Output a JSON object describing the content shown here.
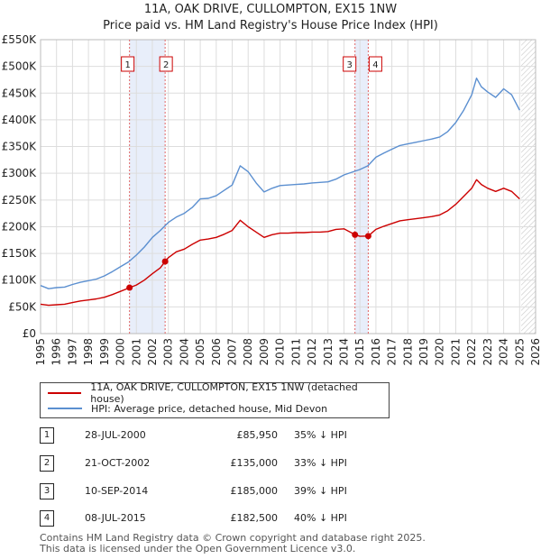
{
  "header": {
    "title": "11A, OAK DRIVE, CULLOMPTON, EX15 1NW",
    "subtitle": "Price paid vs. HM Land Registry's House Price Index (HPI)"
  },
  "colors": {
    "property": "#cc0000",
    "hpi": "#5b8fd0",
    "shade": "#e8eefa",
    "marker_line": "#e06666"
  },
  "legend": {
    "property_label": "11A, OAK DRIVE, CULLOMPTON, EX15 1NW (detached house)",
    "hpi_label": "HPI: Average price, detached house, Mid Devon"
  },
  "transactions": [
    {
      "num": "1",
      "date": "28-JUL-2000",
      "price": "£85,950",
      "hpi": "35% ↓ HPI"
    },
    {
      "num": "2",
      "date": "21-OCT-2002",
      "price": "£135,000",
      "hpi": "33% ↓ HPI"
    },
    {
      "num": "3",
      "date": "10-SEP-2014",
      "price": "£185,000",
      "hpi": "39% ↓ HPI"
    },
    {
      "num": "4",
      "date": "08-JUL-2015",
      "price": "£182,500",
      "hpi": "40% ↓ HPI"
    }
  ],
  "footer": {
    "line1": "Contains HM Land Registry data © Crown copyright and database right 2025.",
    "line2": "This data is licensed under the Open Government Licence v3.0."
  },
  "chart_data": {
    "type": "line",
    "xlim": [
      1995,
      2026
    ],
    "ylim": [
      0,
      550000
    ],
    "y_ticks": [
      {
        "value": 0,
        "label": "£0"
      },
      {
        "value": 50000,
        "label": "£50K"
      },
      {
        "value": 100000,
        "label": "£100K"
      },
      {
        "value": 150000,
        "label": "£150K"
      },
      {
        "value": 200000,
        "label": "£200K"
      },
      {
        "value": 250000,
        "label": "£250K"
      },
      {
        "value": 300000,
        "label": "£300K"
      },
      {
        "value": 350000,
        "label": "£350K"
      },
      {
        "value": 400000,
        "label": "£400K"
      },
      {
        "value": 450000,
        "label": "£450K"
      },
      {
        "value": 500000,
        "label": "£500K"
      },
      {
        "value": 550000,
        "label": "£550K"
      }
    ],
    "x_ticks": [
      "1995",
      "1996",
      "1997",
      "1998",
      "1999",
      "2000",
      "2001",
      "2002",
      "2003",
      "2004",
      "2005",
      "2006",
      "2007",
      "2008",
      "2009",
      "2010",
      "2011",
      "2012",
      "2013",
      "2014",
      "2015",
      "2016",
      "2017",
      "2018",
      "2019",
      "2020",
      "2021",
      "2022",
      "2023",
      "2024",
      "2025",
      "2026"
    ],
    "shaded_ranges": [
      [
        2000.57,
        2002.8
      ],
      [
        2014.69,
        2015.52
      ]
    ],
    "forecast_start": 2025.1,
    "series": [
      {
        "name": "HPI: Average price, detached house, Mid Devon",
        "color": "#5b8fd0",
        "x": [
          1995,
          1995.5,
          1996,
          1996.5,
          1997,
          1997.5,
          1998,
          1998.5,
          1999,
          1999.5,
          2000,
          2000.5,
          2001,
          2001.5,
          2002,
          2002.5,
          2003,
          2003.5,
          2004,
          2004.5,
          2005,
          2005.5,
          2006,
          2006.5,
          2007,
          2007.5,
          2008,
          2008.5,
          2009,
          2009.5,
          2010,
          2010.5,
          2011,
          2011.5,
          2012,
          2012.5,
          2013,
          2013.5,
          2014,
          2014.5,
          2015,
          2015.5,
          2016,
          2016.5,
          2017,
          2017.5,
          2018,
          2018.5,
          2019,
          2019.5,
          2020,
          2020.5,
          2021,
          2021.5,
          2022,
          2022.3,
          2022.6,
          2023,
          2023.5,
          2024,
          2024.5,
          2025
        ],
        "values": [
          90000,
          84000,
          86000,
          87000,
          92000,
          96000,
          99000,
          102000,
          108000,
          116000,
          125000,
          134000,
          147000,
          162000,
          180000,
          193000,
          208000,
          218000,
          225000,
          236000,
          252000,
          253000,
          258000,
          268000,
          278000,
          314000,
          303000,
          282000,
          265000,
          272000,
          277000,
          278000,
          279000,
          280000,
          282000,
          283000,
          284000,
          289000,
          297000,
          302000,
          307000,
          314000,
          330000,
          338000,
          345000,
          352000,
          355000,
          358000,
          361000,
          364000,
          368000,
          378000,
          395000,
          418000,
          447000,
          478000,
          462000,
          452000,
          442000,
          458000,
          447000,
          418000
        ]
      },
      {
        "name": "11A, OAK DRIVE, CULLOMPTON, EX15 1NW (detached house)",
        "color": "#cc0000",
        "x": [
          1995,
          1995.5,
          1996,
          1996.5,
          1997,
          1997.5,
          1998,
          1998.5,
          1999,
          1999.5,
          2000,
          2000.57,
          2001,
          2001.5,
          2002,
          2002.5,
          2002.8,
          2003,
          2003.5,
          2004,
          2004.5,
          2005,
          2005.5,
          2006,
          2006.5,
          2007,
          2007.5,
          2008,
          2008.5,
          2009,
          2009.5,
          2010,
          2010.5,
          2011,
          2011.5,
          2012,
          2012.5,
          2013,
          2013.5,
          2014,
          2014.69,
          2015,
          2015.52,
          2016,
          2016.5,
          2017,
          2017.5,
          2018,
          2018.5,
          2019,
          2019.5,
          2020,
          2020.5,
          2021,
          2021.5,
          2022,
          2022.3,
          2022.6,
          2023,
          2023.5,
          2024,
          2024.5,
          2025
        ],
        "values": [
          55000,
          53000,
          54000,
          55000,
          58000,
          61000,
          63000,
          65000,
          68000,
          73000,
          79000,
          85950,
          91000,
          100000,
          112000,
          123000,
          135000,
          142000,
          153000,
          158000,
          167000,
          175000,
          177000,
          180000,
          186000,
          193000,
          212000,
          200000,
          190000,
          180000,
          185000,
          188000,
          188000,
          189000,
          189000,
          190000,
          190000,
          191000,
          195000,
          196000,
          185000,
          182000,
          182500,
          195000,
          201000,
          206000,
          211000,
          213000,
          215000,
          217000,
          219000,
          222000,
          230000,
          242000,
          257000,
          272000,
          288000,
          279000,
          272000,
          266000,
          272000,
          266000,
          252000
        ]
      }
    ],
    "sales": [
      {
        "label": "1",
        "x": 2000.57,
        "value": 85950
      },
      {
        "label": "2",
        "x": 2002.8,
        "value": 135000
      },
      {
        "label": "3",
        "x": 2014.69,
        "value": 185000
      },
      {
        "label": "4",
        "x": 2015.52,
        "value": 182500
      }
    ]
  }
}
